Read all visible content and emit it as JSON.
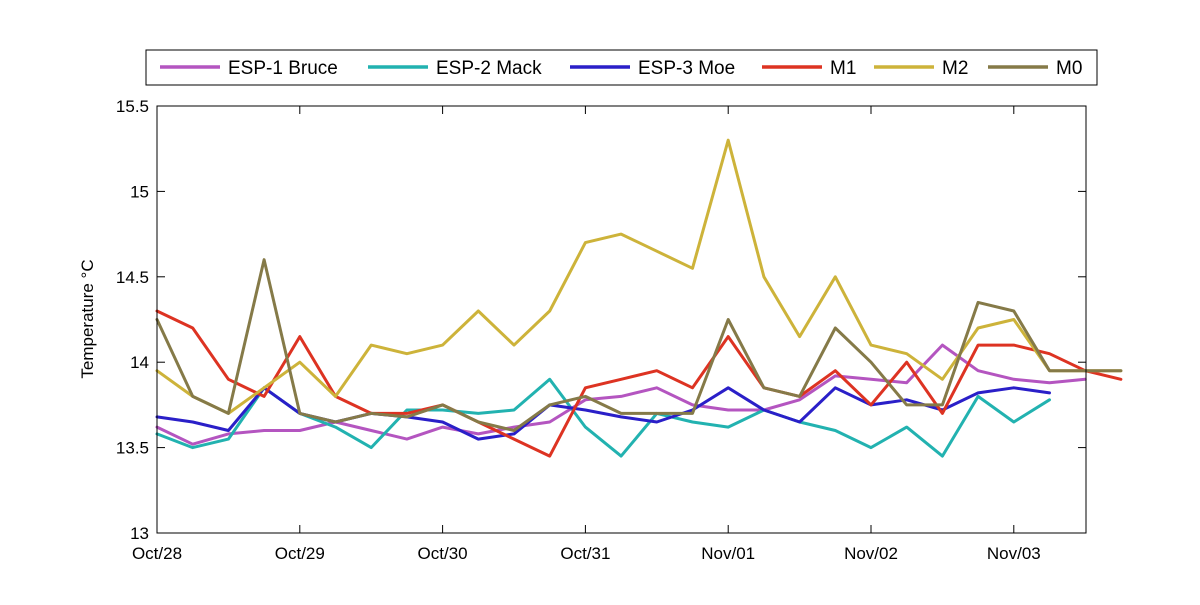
{
  "chart_data": {
    "type": "line",
    "title": "",
    "xlabel": "",
    "ylabel": "Temperature °C",
    "xlim": [
      "2010-10-28",
      "2010-11-03 18:00"
    ],
    "ylim": [
      13,
      15.5
    ],
    "x_ticks": [
      "Oct/28",
      "Oct/29",
      "Oct/30",
      "Oct/31",
      "Nov/01",
      "Nov/02",
      "Nov/03"
    ],
    "y_ticks": [
      "13",
      "13.5",
      "14",
      "14.5",
      "15",
      "15.5"
    ],
    "grid": false,
    "legend_position": "top",
    "series": [
      {
        "name": "ESP-1 Bruce",
        "color": "#b455c0",
        "points": [
          [
            "10-28 00:00",
            13.62
          ],
          [
            "10-28 06:00",
            13.52
          ],
          [
            "10-28 12:00",
            13.58
          ],
          [
            "10-28 18:00",
            13.6
          ],
          [
            "10-29 00:00",
            13.6
          ],
          [
            "10-29 06:00",
            13.65
          ],
          [
            "10-29 12:00",
            13.6
          ],
          [
            "10-29 18:00",
            13.55
          ],
          [
            "10-30 00:00",
            13.62
          ],
          [
            "10-30 06:00",
            13.58
          ],
          [
            "10-30 12:00",
            13.62
          ],
          [
            "10-30 18:00",
            13.65
          ],
          [
            "10-31 00:00",
            13.78
          ],
          [
            "10-31 06:00",
            13.8
          ],
          [
            "10-31 12:00",
            13.85
          ],
          [
            "10-31 18:00",
            13.75
          ],
          [
            "11-01 00:00",
            13.72
          ],
          [
            "11-01 06:00",
            13.72
          ],
          [
            "11-01 12:00",
            13.78
          ],
          [
            "11-01 18:00",
            13.92
          ],
          [
            "11-02 00:00",
            13.9
          ],
          [
            "11-02 06:00",
            13.88
          ],
          [
            "11-02 12:00",
            14.1
          ],
          [
            "11-02 18:00",
            13.95
          ],
          [
            "11-03 00:00",
            13.9
          ],
          [
            "11-03 06:00",
            13.88
          ],
          [
            "11-03 12:00",
            13.9
          ]
        ]
      },
      {
        "name": "ESP-2 Mack",
        "color": "#22b2b0",
        "points": [
          [
            "10-28 00:00",
            13.58
          ],
          [
            "10-28 06:00",
            13.5
          ],
          [
            "10-28 12:00",
            13.55
          ],
          [
            "10-28 18:00",
            13.85
          ],
          [
            "10-29 00:00",
            13.7
          ],
          [
            "10-29 06:00",
            13.62
          ],
          [
            "10-29 12:00",
            13.5
          ],
          [
            "10-29 18:00",
            13.72
          ],
          [
            "10-30 00:00",
            13.72
          ],
          [
            "10-30 06:00",
            13.7
          ],
          [
            "10-30 12:00",
            13.72
          ],
          [
            "10-30 18:00",
            13.9
          ],
          [
            "10-31 00:00",
            13.62
          ],
          [
            "10-31 06:00",
            13.45
          ],
          [
            "10-31 12:00",
            13.7
          ],
          [
            "10-31 18:00",
            13.65
          ],
          [
            "11-01 00:00",
            13.62
          ],
          [
            "11-01 06:00",
            13.72
          ],
          [
            "11-01 12:00",
            13.65
          ],
          [
            "11-01 18:00",
            13.6
          ],
          [
            "11-02 00:00",
            13.5
          ],
          [
            "11-02 06:00",
            13.62
          ],
          [
            "11-02 12:00",
            13.45
          ],
          [
            "11-02 18:00",
            13.8
          ],
          [
            "11-03 00:00",
            13.65
          ],
          [
            "11-03 06:00",
            13.78
          ]
        ]
      },
      {
        "name": "ESP-3 Moe",
        "color": "#2a1fc8",
        "points": [
          [
            "10-28 00:00",
            13.68
          ],
          [
            "10-28 06:00",
            13.65
          ],
          [
            "10-28 12:00",
            13.6
          ],
          [
            "10-28 18:00",
            13.85
          ],
          [
            "10-29 00:00",
            13.7
          ],
          [
            "10-29 06:00",
            13.65
          ],
          [
            "10-29 12:00",
            13.7
          ],
          [
            "10-29 18:00",
            13.68
          ],
          [
            "10-30 00:00",
            13.65
          ],
          [
            "10-30 06:00",
            13.55
          ],
          [
            "10-30 12:00",
            13.58
          ],
          [
            "10-30 18:00",
            13.75
          ],
          [
            "10-31 00:00",
            13.72
          ],
          [
            "10-31 06:00",
            13.68
          ],
          [
            "10-31 12:00",
            13.65
          ],
          [
            "10-31 18:00",
            13.72
          ],
          [
            "11-01 00:00",
            13.85
          ],
          [
            "11-01 06:00",
            13.72
          ],
          [
            "11-01 12:00",
            13.65
          ],
          [
            "11-01 18:00",
            13.85
          ],
          [
            "11-02 00:00",
            13.75
          ],
          [
            "11-02 06:00",
            13.78
          ],
          [
            "11-02 12:00",
            13.72
          ],
          [
            "11-02 18:00",
            13.82
          ],
          [
            "11-03 00:00",
            13.85
          ],
          [
            "11-03 06:00",
            13.82
          ]
        ]
      },
      {
        "name": "M1",
        "color": "#dd3322",
        "points": [
          [
            "10-28 00:00",
            14.3
          ],
          [
            "10-28 06:00",
            14.2
          ],
          [
            "10-28 12:00",
            13.9
          ],
          [
            "10-28 18:00",
            13.8
          ],
          [
            "10-29 00:00",
            14.15
          ],
          [
            "10-29 06:00",
            13.8
          ],
          [
            "10-29 12:00",
            13.7
          ],
          [
            "10-29 18:00",
            13.7
          ],
          [
            "10-30 00:00",
            13.75
          ],
          [
            "10-30 06:00",
            13.65
          ],
          [
            "10-30 12:00",
            13.55
          ],
          [
            "10-30 18:00",
            13.45
          ],
          [
            "10-31 00:00",
            13.85
          ],
          [
            "10-31 06:00",
            13.9
          ],
          [
            "10-31 12:00",
            13.95
          ],
          [
            "10-31 18:00",
            13.85
          ],
          [
            "11-01 00:00",
            14.15
          ],
          [
            "11-01 06:00",
            13.85
          ],
          [
            "11-01 12:00",
            13.8
          ],
          [
            "11-01 18:00",
            13.95
          ],
          [
            "11-02 00:00",
            13.75
          ],
          [
            "11-02 06:00",
            14.0
          ],
          [
            "11-02 12:00",
            13.7
          ],
          [
            "11-02 18:00",
            14.1
          ],
          [
            "11-03 00:00",
            14.1
          ],
          [
            "11-03 06:00",
            14.05
          ],
          [
            "11-03 12:00",
            13.95
          ],
          [
            "11-03 18:00",
            13.9
          ]
        ]
      },
      {
        "name": "M2",
        "color": "#cdb33a",
        "points": [
          [
            "10-28 00:00",
            13.95
          ],
          [
            "10-28 06:00",
            13.8
          ],
          [
            "10-28 12:00",
            13.7
          ],
          [
            "10-28 18:00",
            13.85
          ],
          [
            "10-29 00:00",
            14.0
          ],
          [
            "10-29 06:00",
            13.8
          ],
          [
            "10-29 12:00",
            14.1
          ],
          [
            "10-29 18:00",
            14.05
          ],
          [
            "10-30 00:00",
            14.1
          ],
          [
            "10-30 06:00",
            14.3
          ],
          [
            "10-30 12:00",
            14.1
          ],
          [
            "10-30 18:00",
            14.3
          ],
          [
            "10-31 00:00",
            14.7
          ],
          [
            "10-31 06:00",
            14.75
          ],
          [
            "10-31 12:00",
            14.65
          ],
          [
            "10-31 18:00",
            14.55
          ],
          [
            "11-01 00:00",
            15.3
          ],
          [
            "11-01 06:00",
            14.5
          ],
          [
            "11-01 12:00",
            14.15
          ],
          [
            "11-01 18:00",
            14.5
          ],
          [
            "11-02 00:00",
            14.1
          ],
          [
            "11-02 06:00",
            14.05
          ],
          [
            "11-02 12:00",
            13.9
          ],
          [
            "11-02 18:00",
            14.2
          ],
          [
            "11-03 00:00",
            14.25
          ],
          [
            "11-03 06:00",
            13.95
          ],
          [
            "11-03 12:00",
            13.95
          ],
          [
            "11-03 18:00",
            13.95
          ]
        ]
      },
      {
        "name": "M0",
        "color": "#857a48",
        "points": [
          [
            "10-28 00:00",
            14.25
          ],
          [
            "10-28 06:00",
            13.8
          ],
          [
            "10-28 12:00",
            13.7
          ],
          [
            "10-28 18:00",
            14.6
          ],
          [
            "10-29 00:00",
            13.7
          ],
          [
            "10-29 06:00",
            13.65
          ],
          [
            "10-29 12:00",
            13.7
          ],
          [
            "10-29 18:00",
            13.68
          ],
          [
            "10-30 00:00",
            13.75
          ],
          [
            "10-30 06:00",
            13.65
          ],
          [
            "10-30 12:00",
            13.6
          ],
          [
            "10-30 18:00",
            13.75
          ],
          [
            "10-31 00:00",
            13.8
          ],
          [
            "10-31 06:00",
            13.7
          ],
          [
            "10-31 12:00",
            13.7
          ],
          [
            "10-31 18:00",
            13.7
          ],
          [
            "11-01 00:00",
            14.25
          ],
          [
            "11-01 06:00",
            13.85
          ],
          [
            "11-01 12:00",
            13.8
          ],
          [
            "11-01 18:00",
            14.2
          ],
          [
            "11-02 00:00",
            14.0
          ],
          [
            "11-02 06:00",
            13.75
          ],
          [
            "11-02 12:00",
            13.75
          ],
          [
            "11-02 18:00",
            14.35
          ],
          [
            "11-03 00:00",
            14.3
          ],
          [
            "11-03 06:00",
            13.95
          ],
          [
            "11-03 12:00",
            13.95
          ],
          [
            "11-03 18:00",
            13.95
          ]
        ]
      }
    ]
  }
}
